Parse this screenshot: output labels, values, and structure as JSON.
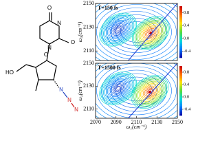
{
  "molecule": {
    "atoms": [
      "O",
      "N",
      "O",
      "N",
      "HO",
      "O",
      "N",
      "N",
      "N"
    ]
  },
  "chart_data": [
    {
      "type": "contour",
      "title": "T=150 fs",
      "ylabel": "ω₃(cm⁻¹)",
      "xlim": [
        2070,
        2150
      ],
      "ylim": [
        2102,
        2150
      ],
      "yticks": [
        2110,
        2130,
        2150
      ],
      "zlim": [
        -0.6,
        1.0
      ],
      "zticks": [
        0.8,
        0.4,
        {
          "value": 0,
          "label": "0.0"
        },
        -0.4
      ],
      "peaks": [
        {
          "x": 2092,
          "y": 2128,
          "z": -0.6
        },
        {
          "x": 2124,
          "y": 2125,
          "z": 1.0
        }
      ]
    },
    {
      "type": "contour",
      "title": "T=1500 fs",
      "xlabel": "ω₁(cm⁻¹)",
      "ylabel": "ω₃(cm⁻¹)",
      "xlim": [
        2070,
        2150
      ],
      "ylim": [
        2102,
        2150
      ],
      "xticks": [
        2070,
        2090,
        2110,
        2130,
        2150
      ],
      "yticks": [
        2110,
        2130,
        2150
      ],
      "zlim": [
        -0.6,
        1.0
      ],
      "zticks": [
        0.8,
        0.4,
        {
          "value": 0,
          "label": "0.0"
        },
        -0.4
      ],
      "peaks": [
        {
          "x": 2092,
          "y": 2128,
          "z": -0.6
        },
        {
          "x": 2123,
          "y": 2125,
          "z": 1.0
        }
      ]
    }
  ]
}
